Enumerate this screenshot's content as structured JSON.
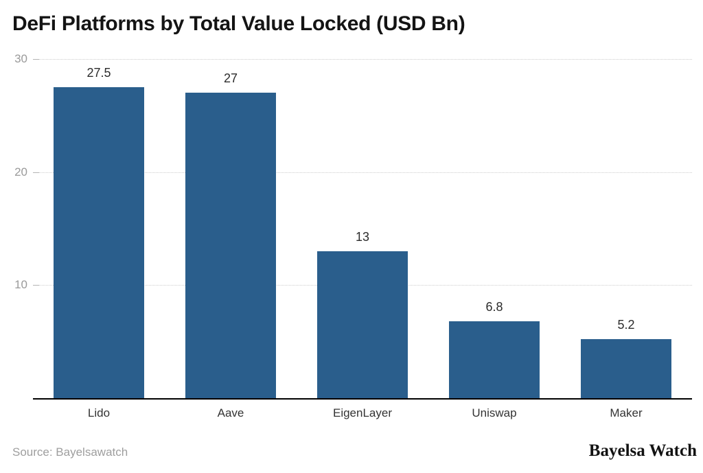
{
  "footer": {
    "source_label": "Source: Bayelsawatch",
    "brand": "Bayelsa Watch"
  },
  "colors": {
    "bar": "#2a5e8c",
    "grid": "#cccccc",
    "tick_label": "#9a9a9a",
    "value_label": "#2b2b2b",
    "category_label": "#333333",
    "baseline": "#000000",
    "title": "#141414",
    "source": "#9e9e9e"
  },
  "chart_data": {
    "type": "bar",
    "title": "DeFi Platforms by Total Value Locked (USD Bn)",
    "categories": [
      "Lido",
      "Aave",
      "EigenLayer",
      "Uniswap",
      "Maker"
    ],
    "values": [
      27.5,
      27,
      13,
      6.8,
      5.2
    ],
    "value_labels": [
      "27.5",
      "27",
      "13",
      "6.8",
      "5.2"
    ],
    "xlabel": "",
    "ylabel": "",
    "ylim": [
      0,
      30
    ],
    "yticks": [
      10,
      20,
      30
    ],
    "grid": "horizontal-dotted",
    "legend": "none"
  }
}
